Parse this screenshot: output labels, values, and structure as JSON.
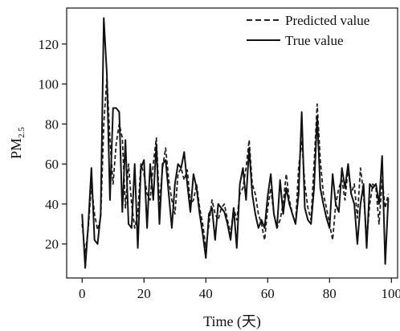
{
  "chart_data": {
    "type": "line",
    "xlabel": "Time (天)",
    "ylabel_main": "PM",
    "ylabel_sub": "2.5",
    "xlim": [
      -5,
      102
    ],
    "ylim": [
      3,
      138
    ],
    "xticks": [
      0,
      20,
      40,
      60,
      80,
      100
    ],
    "yticks": [
      20,
      40,
      60,
      80,
      100,
      120
    ],
    "grid": false,
    "legend_position": "top-right",
    "series": [
      {
        "name": "Predicted value",
        "style": "dashed",
        "color": "#222222",
        "x": [
          0,
          1,
          2,
          3,
          4,
          5,
          6,
          7,
          8,
          9,
          10,
          11,
          12,
          13,
          14,
          15,
          16,
          17,
          18,
          19,
          20,
          21,
          22,
          23,
          24,
          25,
          26,
          27,
          28,
          29,
          30,
          31,
          32,
          33,
          34,
          35,
          36,
          37,
          38,
          39,
          40,
          41,
          42,
          43,
          44,
          45,
          46,
          47,
          48,
          49,
          50,
          51,
          52,
          53,
          54,
          55,
          56,
          57,
          58,
          59,
          60,
          61,
          62,
          63,
          64,
          65,
          66,
          67,
          68,
          69,
          70,
          71,
          72,
          73,
          74,
          75,
          76,
          77,
          78,
          79,
          80,
          81,
          82,
          83,
          84,
          85,
          86,
          87,
          88,
          89,
          90,
          91,
          92,
          93,
          94,
          95,
          96,
          97,
          98,
          99
        ],
        "values": [
          30,
          15,
          28,
          50,
          35,
          27,
          33,
          80,
          103,
          72,
          50,
          70,
          80,
          73,
          38,
          60,
          40,
          28,
          35,
          60,
          55,
          45,
          42,
          60,
          73,
          40,
          58,
          68,
          52,
          42,
          35,
          55,
          58,
          52,
          57,
          40,
          42,
          50,
          38,
          30,
          18,
          30,
          42,
          35,
          32,
          38,
          40,
          32,
          25,
          38,
          32,
          45,
          48,
          58,
          72,
          50,
          45,
          35,
          30,
          22,
          38,
          48,
          35,
          28,
          32,
          40,
          55,
          42,
          35,
          30,
          58,
          72,
          50,
          38,
          32,
          60,
          90,
          62,
          45,
          38,
          30,
          22,
          40,
          48,
          52,
          42,
          58,
          45,
          50,
          33,
          58,
          45,
          22,
          40,
          50,
          48,
          30,
          52,
          38,
          45
        ]
      },
      {
        "name": "True value",
        "style": "solid",
        "color": "#111111",
        "x": [
          0,
          1,
          2,
          3,
          4,
          5,
          6,
          7,
          8,
          9,
          10,
          11,
          12,
          13,
          14,
          15,
          16,
          17,
          18,
          19,
          20,
          21,
          22,
          23,
          24,
          25,
          26,
          27,
          28,
          29,
          30,
          31,
          32,
          33,
          34,
          35,
          36,
          37,
          38,
          39,
          40,
          41,
          42,
          43,
          44,
          45,
          46,
          47,
          48,
          49,
          50,
          51,
          52,
          53,
          54,
          55,
          56,
          57,
          58,
          59,
          60,
          61,
          62,
          63,
          64,
          65,
          66,
          67,
          68,
          69,
          70,
          71,
          72,
          73,
          74,
          75,
          76,
          77,
          78,
          79,
          80,
          81,
          82,
          83,
          84,
          85,
          86,
          87,
          88,
          89,
          90,
          91,
          92,
          93,
          94,
          95,
          96,
          97,
          98,
          99
        ],
        "values": [
          35,
          8,
          30,
          58,
          22,
          20,
          35,
          133,
          105,
          42,
          88,
          88,
          86,
          36,
          72,
          30,
          28,
          60,
          18,
          58,
          62,
          28,
          60,
          42,
          70,
          30,
          60,
          62,
          45,
          28,
          50,
          60,
          58,
          66,
          50,
          36,
          55,
          48,
          35,
          25,
          13,
          35,
          38,
          22,
          40,
          38,
          36,
          30,
          22,
          38,
          18,
          50,
          58,
          42,
          68,
          45,
          35,
          28,
          32,
          28,
          44,
          55,
          35,
          28,
          52,
          35,
          48,
          40,
          35,
          30,
          45,
          86,
          38,
          32,
          30,
          48,
          84,
          48,
          40,
          33,
          28,
          55,
          40,
          36,
          58,
          48,
          60,
          45,
          40,
          20,
          40,
          50,
          18,
          50,
          48,
          50,
          40,
          64,
          10,
          43
        ]
      }
    ]
  }
}
